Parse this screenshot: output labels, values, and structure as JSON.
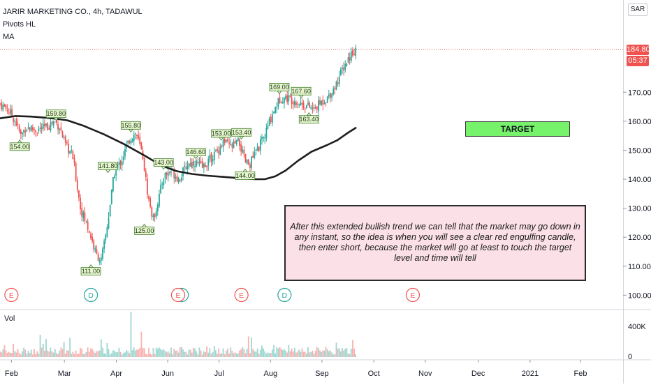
{
  "header": {
    "symbol_line": "JARIR MARKETING CO., 4h, TADAWUL",
    "indicator_pivots": "Pivots HL",
    "indicator_ma": "MA"
  },
  "currency_button": "SAR",
  "last_price": "184.80",
  "countdown": "05:37",
  "colors": {
    "up": "#26a69a",
    "down": "#ef5350",
    "ma_line": "#1e1e1e",
    "last_price_tag": "#ef5350",
    "pivot_label_fill": "#e6f5d0",
    "pivot_label_border": "#3f7d2b",
    "target_fill": "#77f26b",
    "note_fill": "#fbe0e8",
    "earnings_marker": "#ef5350",
    "dividend_marker": "#26a69a"
  },
  "annotations": {
    "target_label": "TARGET",
    "note_text": "After this extended bullish trend we can tell that the market may go down in any instant, so the idea is when you will see a clear red engulfing candle, then enter short, because the market will go at least to touch the target level and time will tell",
    "target_level": 152
  },
  "volume_pane": {
    "label": "Vol",
    "ticks": [
      "400K",
      "0"
    ]
  },
  "chart_data": {
    "type": "candlestick",
    "title": "JARIR MARKETING CO., 4h, TADAWUL",
    "y_range": [
      96,
      197
    ],
    "y_ticks": [
      {
        "value": 100,
        "label": "100.00"
      },
      {
        "value": 110,
        "label": "110.00"
      },
      {
        "value": 120,
        "label": "120.00"
      },
      {
        "value": 130,
        "label": "130.00"
      },
      {
        "value": 140,
        "label": "140.00"
      },
      {
        "value": 150,
        "label": "150.00"
      },
      {
        "value": 160,
        "label": "160.00"
      },
      {
        "value": 170,
        "label": "170.00"
      }
    ],
    "x_range": [
      0,
      12
    ],
    "x_ticks": [
      {
        "pos": 0.22,
        "label": "Feb"
      },
      {
        "pos": 1.24,
        "label": "Mar"
      },
      {
        "pos": 2.24,
        "label": "Apr"
      },
      {
        "pos": 3.23,
        "label": "Jun"
      },
      {
        "pos": 4.22,
        "label": "Jul"
      },
      {
        "pos": 5.21,
        "label": "Aug"
      },
      {
        "pos": 6.2,
        "label": "Sep"
      },
      {
        "pos": 7.2,
        "label": "Oct"
      },
      {
        "pos": 8.19,
        "label": "Nov"
      },
      {
        "pos": 9.21,
        "label": "Dec"
      },
      {
        "pos": 10.21,
        "label": "2021"
      },
      {
        "pos": 11.18,
        "label": "Feb"
      }
    ],
    "price_anchors": [
      [
        0.0,
        166
      ],
      [
        0.15,
        164
      ],
      [
        0.3,
        160
      ],
      [
        0.4,
        155
      ],
      [
        0.5,
        158
      ],
      [
        0.7,
        157
      ],
      [
        0.9,
        158
      ],
      [
        1.05,
        160
      ],
      [
        1.15,
        158
      ],
      [
        1.25,
        152
      ],
      [
        1.4,
        148
      ],
      [
        1.55,
        130
      ],
      [
        1.72,
        122
      ],
      [
        1.85,
        114
      ],
      [
        1.95,
        112
      ],
      [
        2.05,
        122
      ],
      [
        2.2,
        142
      ],
      [
        2.35,
        147
      ],
      [
        2.5,
        154
      ],
      [
        2.62,
        156
      ],
      [
        2.75,
        148
      ],
      [
        2.85,
        134
      ],
      [
        2.95,
        126
      ],
      [
        3.05,
        133
      ],
      [
        3.15,
        141
      ],
      [
        3.3,
        143
      ],
      [
        3.45,
        140
      ],
      [
        3.6,
        145
      ],
      [
        3.75,
        146
      ],
      [
        3.9,
        144
      ],
      [
        4.05,
        147
      ],
      [
        4.2,
        150
      ],
      [
        4.3,
        153
      ],
      [
        4.45,
        151
      ],
      [
        4.6,
        153
      ],
      [
        4.72,
        146
      ],
      [
        4.8,
        145
      ],
      [
        4.95,
        150
      ],
      [
        5.1,
        155
      ],
      [
        5.25,
        163
      ],
      [
        5.4,
        168
      ],
      [
        5.55,
        168
      ],
      [
        5.7,
        167
      ],
      [
        5.8,
        166
      ],
      [
        5.95,
        165
      ],
      [
        6.05,
        164
      ],
      [
        6.15,
        166
      ],
      [
        6.3,
        168
      ],
      [
        6.45,
        172
      ],
      [
        6.6,
        178
      ],
      [
        6.75,
        183
      ],
      [
        6.85,
        185
      ]
    ],
    "moving_average": [
      [
        0.0,
        161
      ],
      [
        0.3,
        161.8
      ],
      [
        0.6,
        161.6
      ],
      [
        0.9,
        161.2
      ],
      [
        1.1,
        160.8
      ],
      [
        1.3,
        160.3
      ],
      [
        1.6,
        158.5
      ],
      [
        2.0,
        155.5
      ],
      [
        2.4,
        152
      ],
      [
        2.8,
        148
      ],
      [
        3.1,
        144.8
      ],
      [
        3.4,
        142.8
      ],
      [
        3.7,
        141.8
      ],
      [
        4.0,
        141.2
      ],
      [
        4.3,
        140.8
      ],
      [
        4.6,
        140.4
      ],
      [
        4.9,
        140
      ],
      [
        5.1,
        140
      ],
      [
        5.3,
        141
      ],
      [
        5.5,
        143
      ],
      [
        5.75,
        146.5
      ],
      [
        6.0,
        149.5
      ],
      [
        6.3,
        151.8
      ],
      [
        6.5,
        153.5
      ],
      [
        6.7,
        156
      ],
      [
        6.85,
        157.7
      ]
    ],
    "pivots": [
      {
        "t": 0.38,
        "value": 154.0,
        "label": "154.00",
        "kind": "low"
      },
      {
        "t": 1.08,
        "value": 159.8,
        "label": "159.80",
        "kind": "high"
      },
      {
        "t": 1.75,
        "value": 111.0,
        "label": "111.00",
        "kind": "low"
      },
      {
        "t": 2.08,
        "value": 141.8,
        "label": "141.80",
        "kind": "high"
      },
      {
        "t": 2.52,
        "value": 155.8,
        "label": "155.80",
        "kind": "high"
      },
      {
        "t": 2.78,
        "value": 125.0,
        "label": "125.00",
        "kind": "low"
      },
      {
        "t": 3.15,
        "value": 143.0,
        "label": "143.00",
        "kind": "high"
      },
      {
        "t": 3.77,
        "value": 146.6,
        "label": "146.60",
        "kind": "high"
      },
      {
        "t": 4.26,
        "value": 153.0,
        "label": "153.00",
        "kind": "high"
      },
      {
        "t": 4.65,
        "value": 153.4,
        "label": "153.40",
        "kind": "high"
      },
      {
        "t": 4.72,
        "value": 144.0,
        "label": "144.00",
        "kind": "low"
      },
      {
        "t": 5.38,
        "value": 169.0,
        "label": "169.00",
        "kind": "high"
      },
      {
        "t": 5.8,
        "value": 167.6,
        "label": "167.60",
        "kind": "high"
      },
      {
        "t": 5.95,
        "value": 163.4,
        "label": "163.40",
        "kind": "low"
      }
    ],
    "events": [
      {
        "t": 0.22,
        "type": "E"
      },
      {
        "t": 1.75,
        "type": "D"
      },
      {
        "t": 3.5,
        "type": "D"
      },
      {
        "t": 3.43,
        "type": "E"
      },
      {
        "t": 4.65,
        "type": "E"
      },
      {
        "t": 5.48,
        "type": "D"
      },
      {
        "t": 7.95,
        "type": "E"
      }
    ],
    "volume_range": [
      0,
      560000
    ]
  }
}
